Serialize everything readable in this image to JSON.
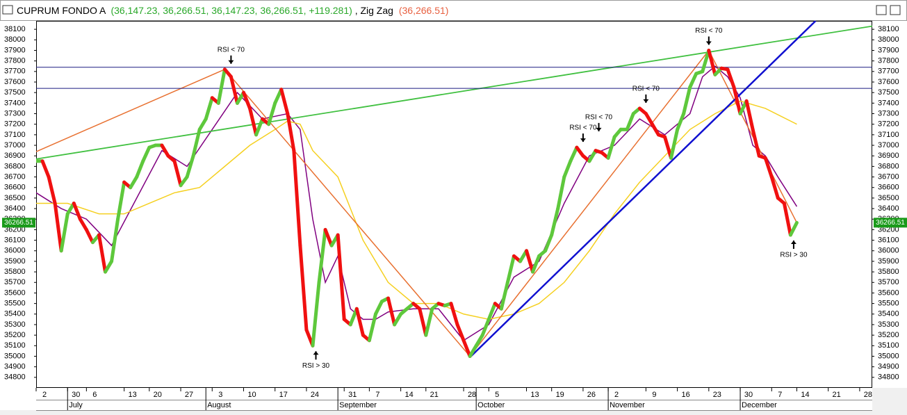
{
  "chart_data": {
    "type": "line",
    "header": {
      "title": "CUPRUM FONDO A",
      "ohlc": "(36,147.23, 36,266.51, 36,147.23, 36,266.51, +119.281)",
      "indicator": ", Zig Zag",
      "indicator_value": "(36,266.51)"
    },
    "xlim": [
      0,
      133
    ],
    "ylim": [
      34700,
      38180
    ],
    "yticks": [
      34800,
      34900,
      35000,
      35100,
      35200,
      35300,
      35400,
      35500,
      35600,
      35700,
      35800,
      35900,
      36000,
      36100,
      36200,
      36300,
      36400,
      36500,
      36600,
      36700,
      36800,
      36900,
      37000,
      37100,
      37200,
      37300,
      37400,
      37500,
      37600,
      37700,
      37800,
      37900,
      38000,
      38100
    ],
    "xticks": [
      {
        "value": 0,
        "label": "2"
      },
      {
        "value": 5,
        "label": "30"
      },
      {
        "value": 8,
        "label": "6"
      },
      {
        "value": 14,
        "label": "13"
      },
      {
        "value": 18,
        "label": "20"
      },
      {
        "value": 23,
        "label": "27"
      },
      {
        "value": 28,
        "label": "3"
      },
      {
        "value": 33,
        "label": "10"
      },
      {
        "value": 38,
        "label": "17"
      },
      {
        "value": 43,
        "label": "24"
      },
      {
        "value": 49,
        "label": "31"
      },
      {
        "value": 53,
        "label": "7"
      },
      {
        "value": 58,
        "label": "14"
      },
      {
        "value": 62,
        "label": "21"
      },
      {
        "value": 68,
        "label": "28"
      },
      {
        "value": 72,
        "label": "5"
      },
      {
        "value": 78,
        "label": "13"
      },
      {
        "value": 82,
        "label": "19"
      },
      {
        "value": 87,
        "label": "26"
      },
      {
        "value": 91,
        "label": "2"
      },
      {
        "value": 97,
        "label": "9"
      },
      {
        "value": 102,
        "label": "16"
      },
      {
        "value": 107,
        "label": "23"
      },
      {
        "value": 112,
        "label": "30"
      },
      {
        "value": 117,
        "label": "7"
      },
      {
        "value": 121,
        "label": "14"
      },
      {
        "value": 126,
        "label": "21"
      },
      {
        "value": 131,
        "label": "28"
      }
    ],
    "month_ticks": [
      {
        "value": 5,
        "label": "July"
      },
      {
        "value": 27,
        "label": "August"
      },
      {
        "value": 48,
        "label": "September"
      },
      {
        "value": 70,
        "label": "October"
      },
      {
        "value": 91,
        "label": "November"
      },
      {
        "value": 112,
        "label": "December"
      }
    ],
    "last_value": 36266.51,
    "last_value_color": "#1a9a1a",
    "up_color": "#5ec83c",
    "down_color": "#f01010",
    "price": {
      "values": [
        36850,
        36850,
        36700,
        36450,
        36000,
        36350,
        36450,
        36300,
        36200,
        36080,
        36150,
        35800,
        35900,
        36300,
        36650,
        36600,
        36700,
        36850,
        36980,
        37000,
        37000,
        36900,
        36850,
        36620,
        36700,
        36900,
        37150,
        37250,
        37450,
        37400,
        37720,
        37650,
        37400,
        37500,
        37350,
        37100,
        37250,
        37200,
        37400,
        37530,
        37300,
        36950,
        36050,
        35250,
        35100,
        35700,
        36200,
        36050,
        36150,
        35350,
        35300,
        35450,
        35200,
        35150,
        35400,
        35520,
        35550,
        35300,
        35400,
        35450,
        35500,
        35450,
        35200,
        35450,
        35500,
        35480,
        35500,
        35300,
        35150,
        35000,
        35100,
        35200,
        35350,
        35500,
        35450,
        35700,
        35950,
        35900,
        36000,
        35800,
        35950,
        36000,
        36150,
        36400,
        36700,
        36850,
        36980,
        36900,
        36850,
        36950,
        36930,
        36880,
        37080,
        37150,
        37150,
        37300,
        37350,
        37300,
        37200,
        37100,
        37080,
        36880,
        37150,
        37300,
        37550,
        37680,
        37700,
        37900,
        37670,
        37730,
        37720,
        37550,
        37300,
        37420,
        37150,
        36900,
        36880,
        36700,
        36500,
        36450,
        36150,
        36266
      ]
    },
    "lines": [
      {
        "color": "#800080",
        "width": 1.5,
        "x": [
          0,
          4,
          8,
          12,
          16,
          20,
          24,
          28,
          32,
          36,
          40,
          42,
          44,
          46,
          48,
          50,
          52,
          54,
          56,
          60,
          64,
          68,
          72,
          76,
          80,
          84,
          88,
          92,
          96,
          100,
          104,
          106,
          108,
          110,
          112,
          114,
          116,
          118,
          121
        ],
        "values": [
          36550,
          36400,
          36300,
          36050,
          36500,
          36950,
          36800,
          37150,
          37500,
          37250,
          37300,
          37150,
          36300,
          35700,
          35950,
          35450,
          35350,
          35350,
          35420,
          35450,
          35450,
          35150,
          35300,
          35750,
          35900,
          36450,
          36900,
          37000,
          37250,
          37100,
          37300,
          37650,
          37750,
          37650,
          37450,
          37000,
          36900,
          36700,
          36420
        ]
      },
      {
        "color": "#f5d020",
        "width": 1.5,
        "x": [
          0,
          5,
          10,
          14,
          18,
          22,
          26,
          30,
          34,
          38,
          40,
          42,
          44,
          48,
          52,
          56,
          60,
          64,
          68,
          72,
          76,
          80,
          84,
          88,
          92,
          96,
          100,
          104,
          108,
          112,
          116,
          121
        ],
        "values": [
          36450,
          36450,
          36350,
          36350,
          36450,
          36550,
          36600,
          36800,
          37000,
          37150,
          37230,
          37200,
          36950,
          36700,
          36100,
          35700,
          35500,
          35500,
          35400,
          35350,
          35400,
          35500,
          35700,
          36000,
          36350,
          36650,
          36900,
          37150,
          37300,
          37420,
          37350,
          37200
        ]
      },
      {
        "color": "#e87030",
        "width": 1.5,
        "x": [
          0,
          30,
          69,
          107,
          121
        ],
        "values": [
          36940,
          37720,
          35000,
          37900,
          36266
        ]
      },
      {
        "color": "#40c040",
        "width": 1.8,
        "x": [
          0,
          133
        ],
        "values": [
          36870,
          38130
        ]
      },
      {
        "color": "#1010d0",
        "width": 2.5,
        "x": [
          69,
          124
        ],
        "values": [
          34990,
          38180
        ]
      },
      {
        "color": "#1a1a80",
        "width": 1,
        "x": [
          0,
          133
        ],
        "values": [
          37740,
          37740
        ]
      },
      {
        "color": "#1a1a80",
        "width": 1,
        "x": [
          0,
          133
        ],
        "values": [
          37540,
          37540
        ]
      }
    ],
    "annotations": [
      {
        "text": "RSI < 70",
        "x": 31,
        "value": 37720,
        "side": "above"
      },
      {
        "text": "RSI < 70",
        "x": 87,
        "value": 36980,
        "side": "above"
      },
      {
        "text": "RSI < 70",
        "x": 89.5,
        "value": 37080,
        "side": "above"
      },
      {
        "text": "RSI < 70",
        "x": 97,
        "value": 37350,
        "side": "above"
      },
      {
        "text": "RSI < 70",
        "x": 107,
        "value": 37900,
        "side": "above"
      },
      {
        "text": "RSI > 30",
        "x": 44.5,
        "value": 35100,
        "side": "below"
      },
      {
        "text": "RSI > 30",
        "x": 120.5,
        "value": 36150,
        "side": "below"
      }
    ]
  }
}
